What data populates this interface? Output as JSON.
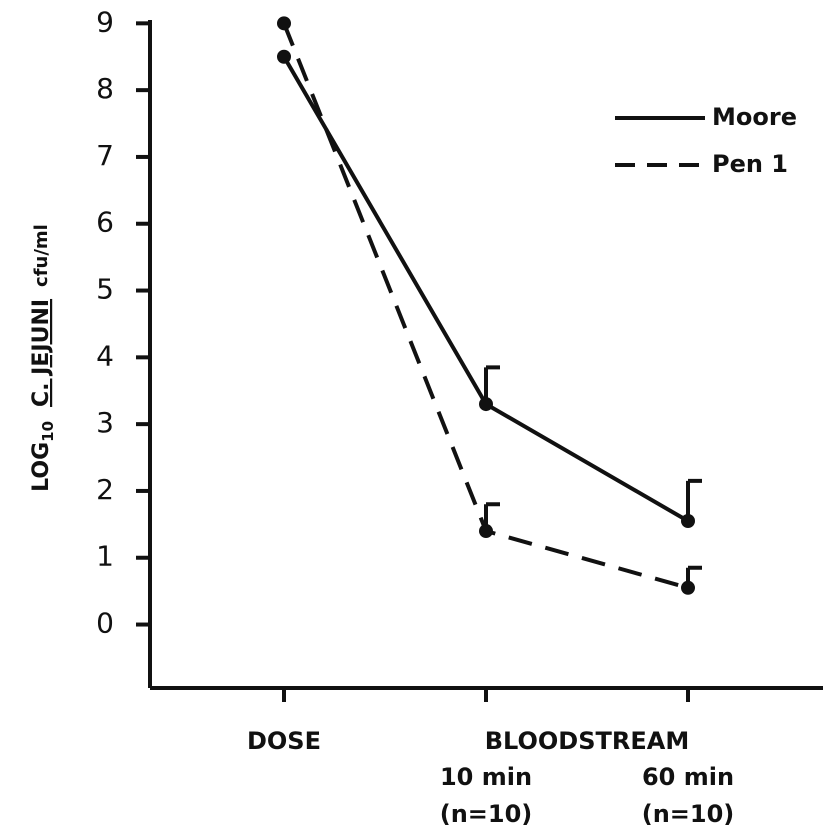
{
  "chart_data": {
    "type": "line",
    "y_label_parts": [
      "LOG",
      "10",
      "C. JEJUNI",
      "cfu/ml"
    ],
    "categories": [
      "DOSE",
      "10 min",
      "60 min"
    ],
    "group_label": "BLOODSTREAM",
    "category_notes": [
      null,
      "(n=10)",
      "(n=10)"
    ],
    "series": [
      {
        "name": "Moore",
        "color": "#111111",
        "dash": "solid",
        "values": [
          8.5,
          3.3,
          1.55
        ],
        "errors": [
          null,
          0.55,
          0.6
        ]
      },
      {
        "name": "Pen 1",
        "color": "#111111",
        "dash": "dashed",
        "values": [
          9.0,
          1.4,
          0.55
        ],
        "errors": [
          null,
          0.4,
          0.3
        ]
      }
    ],
    "ylim": [
      -0.95,
      9.05
    ],
    "yticks": [
      0,
      1,
      2,
      3,
      4,
      5,
      6,
      7,
      8,
      9
    ],
    "legend": "upper right"
  }
}
